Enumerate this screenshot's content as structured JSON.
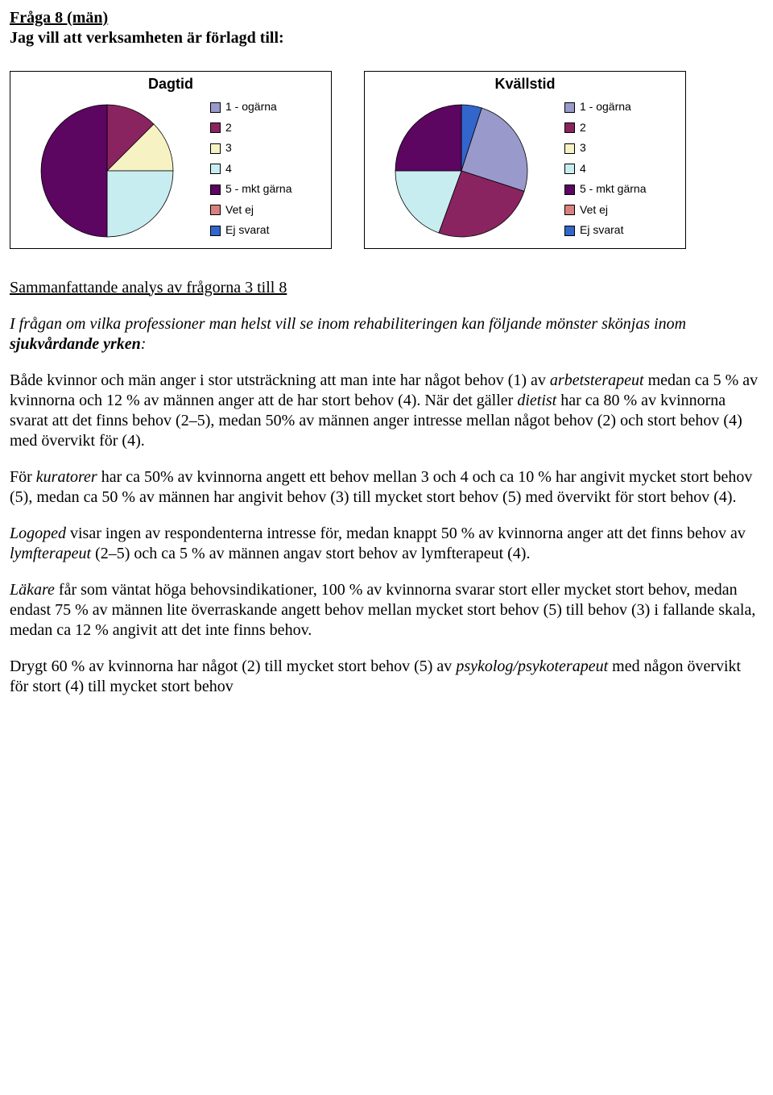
{
  "heading": "Fråga 8 (män)",
  "subheading": "Jag vill att verksamheten är förlagd till:",
  "legend_labels": [
    "1 - ogärna",
    "2",
    "3",
    "4",
    "5 - mkt gärna",
    "Vet ej",
    "Ej svarat"
  ],
  "legend_colors": [
    "#9999cc",
    "#8a2460",
    "#f6f2c4",
    "#c8edf1",
    "#5c0561",
    "#d98080",
    "#3366cc"
  ],
  "chart_dagtid": {
    "title": "Dagtid",
    "slices": [
      {
        "color": "#8a2460",
        "start": -90,
        "end": -45
      },
      {
        "color": "#f6f2c4",
        "start": -45,
        "end": 0
      },
      {
        "color": "#c8edf1",
        "start": 0,
        "end": 90
      },
      {
        "color": "#5c0561",
        "start": 90,
        "end": 270
      }
    ]
  },
  "chart_kvallstid": {
    "title": "Kvällstid",
    "slices": [
      {
        "color": "#3366cc",
        "start": -90,
        "end": -72
      },
      {
        "color": "#9999cc",
        "start": -72,
        "end": 18
      },
      {
        "color": "#8a2460",
        "start": 18,
        "end": 110
      },
      {
        "color": "#c8edf1",
        "start": 110,
        "end": 180
      },
      {
        "color": "#5c0561",
        "start": 180,
        "end": 270
      }
    ]
  },
  "analysis_title": "Sammanfattande analys av frågorna 3 till 8",
  "intro_line": "I frågan om vilka professioner man helst vill se inom rehabiliteringen kan följande mönster skönjas inom ",
  "intro_bold": "sjukvårdande yrken",
  "intro_tail": ":",
  "p1_a": "Både kvinnor och män anger i stor utsträckning att man inte har något behov (1) av ",
  "p1_em1": "arbetsterapeut",
  "p1_b": " medan ca 5 % av kvinnorna  och 12 % av männen anger att de har stort behov (4). När det gäller ",
  "p1_em2": "dietist",
  "p1_c": " har ca 80 % av kvinnorna svarat att det finns behov (2–5), medan 50% av männen anger intresse mellan något behov (2) och stort behov (4) med övervikt för (4).",
  "p2_a": "För ",
  "p2_em1": "kuratorer",
  "p2_b": " har ca 50% av kvinnorna angett ett behov mellan 3 och 4 och ca 10 % har angivit mycket stort behov (5), medan ca 50 % av männen har angivit behov (3) till mycket stort behov (5) med övervikt för stort behov (4).",
  "p3_em1": "Logoped",
  "p3_a": " visar ingen av respondenterna intresse för, medan knappt 50 % av kvinnorna anger att det finns behov av ",
  "p3_em2": "lymfterapeut",
  "p3_b": " (2–5) och ca 5 % av männen angav stort behov av lymfterapeut (4).",
  "p4_em1": "Läkare",
  "p4_a": " får som väntat höga behovsindikationer, 100 % av kvinnorna svarar stort eller mycket stort behov, medan endast 75 % av männen lite överraskande angett behov mellan mycket stort behov (5) till behov (3) i fallande skala, medan ca 12 % angivit att det inte finns behov.",
  "p5_a": "Drygt 60 % av kvinnorna har något (2) till mycket stort behov (5) av ",
  "p5_em1": "psykolog/psykoterapeut",
  "p5_b": " med någon övervikt för stort (4) till mycket stort behov"
}
